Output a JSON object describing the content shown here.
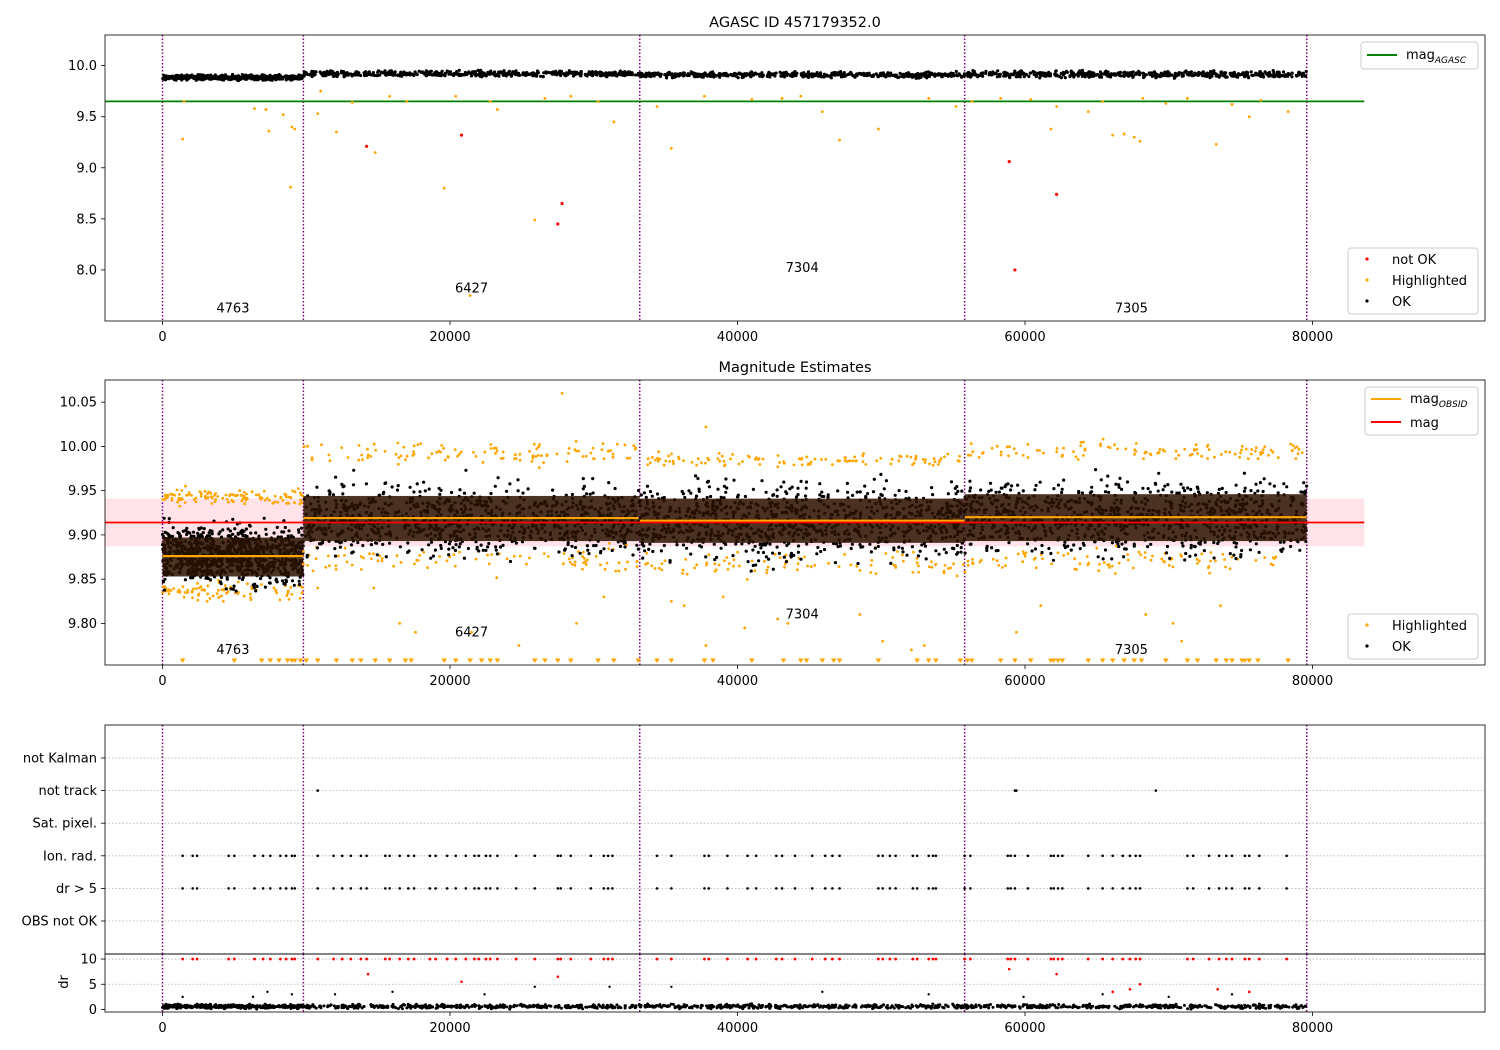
{
  "colors": {
    "ok": "#000000",
    "highlighted": "#FFA500",
    "not_ok": "#FF0000",
    "agasc_line": "#008000",
    "mag_line": "#FF0000",
    "obsid_line": "#FFA500",
    "boundary": "#800080",
    "band_fill": "#FFC0CB",
    "obs_block": "#2a1200"
  },
  "chart_data": [
    {
      "type": "scatter",
      "title": "AGASC ID 457179352.0",
      "xlim": [
        -4000,
        92000
      ],
      "ylim": [
        7.5,
        10.3
      ],
      "x_ticks": [
        0,
        20000,
        40000,
        60000,
        80000
      ],
      "x_tick_labels": [
        "0",
        "20000",
        "40000",
        "60000",
        "80000"
      ],
      "y_ticks": [
        8.0,
        8.5,
        9.0,
        9.5,
        10.0
      ],
      "y_tick_labels": [
        "8.0",
        "8.5",
        "9.0",
        "9.5",
        "10.0"
      ],
      "reference_lines": [
        {
          "name": "mag_AGASC",
          "y": 9.65,
          "x_range": [
            -4000,
            83600
          ]
        }
      ],
      "legend_upper": {
        "position": "upper right",
        "entries": [
          {
            "label_main": "mag",
            "label_sub": "AGASC",
            "style": "line",
            "color": "#008000"
          }
        ]
      },
      "legend_lower": {
        "position": "lower right",
        "entries": [
          {
            "label": "not OK",
            "color": "#FF0000"
          },
          {
            "label": "Highlighted",
            "color": "#FFA500"
          },
          {
            "label": "OK",
            "color": "#000000"
          }
        ]
      },
      "segments": [
        {
          "obsid": "4763",
          "x_range": [
            0,
            9800
          ],
          "ok_y_range": [
            9.85,
            9.92
          ],
          "label_x": 4900,
          "label_y": 7.62
        },
        {
          "obsid": "6427",
          "x_range": [
            9800,
            33200
          ],
          "ok_y_range": [
            9.88,
            9.96
          ],
          "label_x": 21500,
          "label_y": 7.82
        },
        {
          "obsid": "7304",
          "x_range": [
            33200,
            55800
          ],
          "ok_y_range": [
            9.87,
            9.95
          ],
          "label_x": 44500,
          "label_y": 8.02
        },
        {
          "obsid": "7305",
          "x_range": [
            55800,
            79600
          ],
          "ok_y_range": [
            9.87,
            9.96
          ],
          "label_x": 67400,
          "label_y": 7.62
        }
      ],
      "boundaries_x": [
        0,
        9800,
        33200,
        55800,
        79600
      ],
      "highlighted_points": [
        [
          1400,
          9.28
        ],
        [
          1500,
          9.65
        ],
        [
          6400,
          9.58
        ],
        [
          7200,
          9.57
        ],
        [
          7400,
          9.36
        ],
        [
          8400,
          9.52
        ],
        [
          8900,
          8.81
        ],
        [
          9000,
          9.4
        ],
        [
          9200,
          9.38
        ],
        [
          10800,
          9.53
        ],
        [
          11000,
          9.75
        ],
        [
          12100,
          9.35
        ],
        [
          13200,
          9.64
        ],
        [
          14800,
          9.15
        ],
        [
          15800,
          9.7
        ],
        [
          17000,
          9.65
        ],
        [
          19600,
          8.8
        ],
        [
          20400,
          9.7
        ],
        [
          21400,
          7.75
        ],
        [
          22800,
          9.65
        ],
        [
          23300,
          9.57
        ],
        [
          25900,
          8.49
        ],
        [
          26600,
          9.68
        ],
        [
          28400,
          9.7
        ],
        [
          30300,
          9.65
        ],
        [
          31400,
          9.45
        ],
        [
          34400,
          9.6
        ],
        [
          35400,
          9.19
        ],
        [
          37700,
          9.7
        ],
        [
          41000,
          9.67
        ],
        [
          43100,
          9.68
        ],
        [
          44400,
          9.7
        ],
        [
          45900,
          9.55
        ],
        [
          47100,
          9.27
        ],
        [
          49800,
          9.38
        ],
        [
          53300,
          9.68
        ],
        [
          55200,
          9.6
        ],
        [
          56300,
          9.65
        ],
        [
          58300,
          9.68
        ],
        [
          60400,
          9.67
        ],
        [
          61800,
          9.38
        ],
        [
          62200,
          9.6
        ],
        [
          64400,
          9.55
        ],
        [
          65400,
          9.65
        ],
        [
          66100,
          9.32
        ],
        [
          66900,
          9.33
        ],
        [
          67600,
          9.3
        ],
        [
          68000,
          9.26
        ],
        [
          68200,
          9.68
        ],
        [
          69800,
          9.63
        ],
        [
          71300,
          9.68
        ],
        [
          73300,
          9.23
        ],
        [
          74400,
          9.62
        ],
        [
          75600,
          9.5
        ],
        [
          76400,
          9.66
        ],
        [
          78300,
          9.55
        ]
      ],
      "not_ok_points": [
        [
          14200,
          9.21
        ],
        [
          20800,
          9.32
        ],
        [
          27500,
          8.45
        ],
        [
          27800,
          8.65
        ],
        [
          58900,
          9.06
        ],
        [
          59300,
          8.0
        ],
        [
          62200,
          8.74
        ]
      ]
    },
    {
      "type": "scatter",
      "title": "Magnitude Estimates",
      "xlim": [
        -4000,
        92000
      ],
      "ylim": [
        9.753,
        10.075
      ],
      "x_ticks": [
        0,
        20000,
        40000,
        60000,
        80000
      ],
      "x_tick_labels": [
        "0",
        "20000",
        "40000",
        "60000",
        "80000"
      ],
      "y_ticks": [
        9.8,
        9.85,
        9.9,
        9.95,
        10.0,
        10.05
      ],
      "y_tick_labels": [
        "9.80",
        "9.85",
        "9.90",
        "9.95",
        "10.00",
        "10.05"
      ],
      "mag": {
        "value": 9.914,
        "band": [
          9.887,
          9.941
        ],
        "x_range": [
          -4000,
          83600
        ]
      },
      "legend_upper": {
        "position": "upper right",
        "entries": [
          {
            "label_main": "mag",
            "label_sub": "OBSID",
            "style": "line",
            "color": "#FFA500"
          },
          {
            "label": "mag",
            "style": "line",
            "color": "#FF0000"
          }
        ]
      },
      "legend_lower": {
        "position": "lower right",
        "entries": [
          {
            "label": "Highlighted",
            "color": "#FFA500"
          },
          {
            "label": "OK",
            "color": "#000000"
          }
        ]
      },
      "segments": [
        {
          "obsid": "4763",
          "x_range": [
            0,
            9800
          ],
          "mag_obsid": 9.876,
          "block": [
            9.853,
            9.897
          ],
          "ok_y_range": [
            9.83,
            9.925
          ],
          "hl_y_range": [
            9.93,
            9.955
          ],
          "label_x": 4900,
          "label_y": 9.77
        },
        {
          "obsid": "6427",
          "x_range": [
            9800,
            33200
          ],
          "mag_obsid": 9.919,
          "block": [
            9.893,
            9.944
          ],
          "ok_y_range": [
            9.86,
            9.975
          ],
          "hl_y_range": [
            9.975,
            10.01
          ],
          "label_x": 21500,
          "label_y": 9.79
        },
        {
          "obsid": "7304",
          "x_range": [
            33200,
            55800
          ],
          "mag_obsid": 9.916,
          "block": [
            9.891,
            9.941
          ],
          "ok_y_range": [
            9.855,
            9.975
          ],
          "hl_y_range": [
            9.975,
            9.995
          ],
          "label_x": 44500,
          "label_y": 9.81
        },
        {
          "obsid": "7305",
          "x_range": [
            55800,
            79600
          ],
          "mag_obsid": 9.92,
          "block": [
            9.893,
            9.946
          ],
          "ok_y_range": [
            9.86,
            9.98
          ],
          "hl_y_range": [
            9.98,
            10.01
          ],
          "label_x": 67400,
          "label_y": 9.77
        }
      ],
      "boundaries_x": [
        0,
        9800,
        33200,
        55800,
        79600
      ],
      "highlighted_outliers": [
        [
          27800,
          10.06
        ],
        [
          37800,
          10.022
        ],
        [
          1800,
          9.945
        ],
        [
          1600,
          9.955
        ],
        [
          10800,
          9.84
        ],
        [
          14700,
          9.84
        ],
        [
          16500,
          9.8
        ],
        [
          17600,
          9.79
        ],
        [
          21500,
          9.79
        ],
        [
          24800,
          9.775
        ],
        [
          28800,
          9.8
        ],
        [
          30700,
          9.83
        ],
        [
          35400,
          9.825
        ],
        [
          36300,
          9.82
        ],
        [
          37800,
          9.775
        ],
        [
          39000,
          9.83
        ],
        [
          40500,
          9.795
        ],
        [
          42800,
          9.805
        ],
        [
          43500,
          9.8
        ],
        [
          48500,
          9.81
        ],
        [
          50100,
          9.78
        ],
        [
          52100,
          9.77
        ],
        [
          53000,
          9.775
        ],
        [
          59400,
          9.79
        ],
        [
          61100,
          9.82
        ],
        [
          68400,
          9.81
        ],
        [
          70300,
          9.8
        ],
        [
          70900,
          9.78
        ],
        [
          73600,
          9.82
        ]
      ],
      "clipped_low_x": [
        1400,
        5000,
        6900,
        7500,
        8100,
        8700,
        9000,
        9200,
        9600,
        10000,
        10800,
        12100,
        13200,
        13800,
        14800,
        15800,
        16900,
        17300,
        19600,
        20400,
        21400,
        22200,
        22800,
        23300,
        25900,
        26600,
        27500,
        28400,
        30300,
        31400,
        33100,
        34400,
        35400,
        37700,
        38300,
        41000,
        43200,
        44400,
        44800,
        45900,
        46700,
        47100,
        49800,
        52500,
        53300,
        53800,
        55500,
        56000,
        56300,
        58300,
        59300,
        60400,
        61800,
        62000,
        62300,
        62600,
        64400,
        65400,
        66100,
        66900,
        67600,
        68100,
        69800,
        71300,
        72000,
        73300,
        74000,
        74400,
        75100,
        75300,
        75600,
        76200,
        78300
      ]
    },
    {
      "type": "scatter",
      "title": "",
      "xlim": [
        -4000,
        92000
      ],
      "x_ticks": [
        0,
        20000,
        40000,
        60000,
        80000
      ],
      "x_tick_labels": [
        "0",
        "20000",
        "40000",
        "60000",
        "80000"
      ],
      "flags": [
        "not Kalman",
        "not track",
        "Sat. pixel.",
        "Ion. rad.",
        "dr > 5",
        "OBS not OK"
      ],
      "flag_points": {
        "not track": [
          10800,
          59300,
          59400,
          69100
        ],
        "Ion. rad.": [
          1400,
          2100,
          2400,
          4600,
          5000,
          6400,
          7000,
          7500,
          8200,
          8600,
          9000,
          9200,
          10800,
          11900,
          12500,
          13100,
          13800,
          14200,
          15500,
          15800,
          16500,
          17100,
          17500,
          18600,
          19000,
          19800,
          20400,
          21100,
          21700,
          22000,
          22500,
          22800,
          23300,
          24600,
          25900,
          27500,
          27700,
          28400,
          29800,
          30700,
          31000,
          31300,
          34400,
          35400,
          37700,
          38000,
          39300,
          40700,
          41300,
          42700,
          43100,
          44000,
          45200,
          46100,
          46600,
          47100,
          49800,
          50100,
          50600,
          51000,
          52200,
          52500,
          53300,
          53600,
          53800,
          55800,
          56200,
          58800,
          59000,
          59300,
          60200,
          61800,
          62000,
          62300,
          62600,
          64400,
          65400,
          66100,
          66800,
          67300,
          67700,
          68000,
          71300,
          71700,
          72800,
          73500,
          74000,
          74400,
          75300,
          75600,
          76300,
          78200
        ],
        "dr > 5": [
          1400,
          2100,
          2400,
          4600,
          5000,
          6400,
          7000,
          7500,
          8200,
          8600,
          9000,
          9200,
          10800,
          11900,
          12500,
          13100,
          13800,
          14200,
          15500,
          15800,
          16500,
          17100,
          17500,
          18600,
          19000,
          19800,
          20400,
          21100,
          21700,
          22000,
          22500,
          22800,
          23300,
          24600,
          25900,
          27500,
          27700,
          28400,
          29800,
          30700,
          31000,
          31300,
          34400,
          35400,
          37700,
          38000,
          39300,
          40700,
          41300,
          42700,
          43100,
          44000,
          45200,
          46100,
          46600,
          47100,
          49800,
          50100,
          50600,
          51000,
          52200,
          52500,
          53300,
          53600,
          53800,
          55800,
          56200,
          58800,
          59000,
          59300,
          60200,
          61800,
          62000,
          62300,
          62600,
          64400,
          65400,
          66100,
          66800,
          67300,
          67700,
          68000,
          71300,
          71700,
          72800,
          73500,
          74000,
          74400,
          75300,
          75600,
          76300,
          78200
        ]
      },
      "boundaries_x": [
        0,
        9800,
        33200,
        55800,
        79600
      ]
    },
    {
      "type": "scatter",
      "title": "",
      "xlabel": "",
      "ylabel": "dr",
      "xlim": [
        -4000,
        92000
      ],
      "ylim": [
        -0.5,
        11
      ],
      "x_ticks": [
        0,
        20000,
        40000,
        60000,
        80000
      ],
      "x_tick_labels": [
        "0",
        "20000",
        "40000",
        "60000",
        "80000"
      ],
      "y_ticks": [
        0,
        5,
        10
      ],
      "y_tick_labels": [
        "0",
        "5",
        "10"
      ],
      "ok_y_range": [
        0,
        1.2
      ],
      "red_capped_y": 10,
      "red_mid_points": [
        [
          14300,
          7
        ],
        [
          20800,
          5.5
        ],
        [
          27500,
          6.5
        ],
        [
          58900,
          8
        ],
        [
          59300,
          10
        ],
        [
          62200,
          7
        ],
        [
          66100,
          3.5
        ],
        [
          67300,
          4
        ],
        [
          68000,
          5
        ],
        [
          73400,
          4
        ],
        [
          75600,
          3.5
        ]
      ],
      "black_mid_points": [
        [
          1400,
          2.5
        ],
        [
          6300,
          2.5
        ],
        [
          7300,
          3.5
        ],
        [
          9000,
          3
        ],
        [
          12000,
          3
        ],
        [
          16000,
          3.5
        ],
        [
          22400,
          3
        ],
        [
          25900,
          4.5
        ],
        [
          31100,
          4.5
        ],
        [
          35400,
          4.5
        ],
        [
          45900,
          3.5
        ],
        [
          53300,
          3
        ],
        [
          59900,
          2.5
        ],
        [
          65400,
          3
        ],
        [
          70000,
          2.5
        ],
        [
          74400,
          3
        ]
      ],
      "boundaries_x": [
        0,
        9800,
        33200,
        55800,
        79600
      ]
    }
  ]
}
